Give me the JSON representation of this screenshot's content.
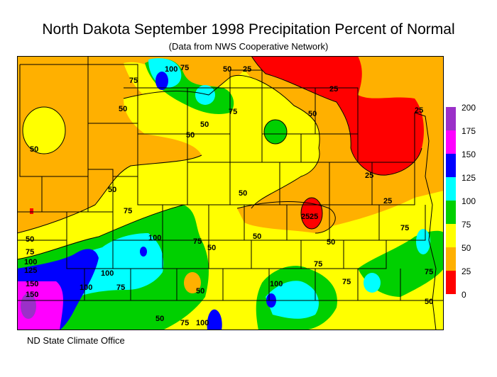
{
  "title": "North Dakota September 1998 Precipitation Percent of Normal",
  "subtitle": "(Data from NWS Cooperative Network)",
  "credit": "ND State Climate Office",
  "legend": {
    "labels": [
      "200",
      "175",
      "150",
      "125",
      "100",
      "75",
      "50",
      "25",
      "0"
    ],
    "colors": [
      "#9b30c8",
      "#ff00ff",
      "#0000ff",
      "#00ffff",
      "#00d000",
      "#ffff00",
      "#ffb000",
      "#ff0000"
    ]
  },
  "contour_labels": [
    "100",
    "75",
    "50",
    "25",
    "75",
    "50",
    "25",
    "50",
    "25",
    "50",
    "50",
    "50",
    "25",
    "75",
    "50",
    "25",
    "50",
    "25",
    "100",
    "75",
    "50",
    "50",
    "50",
    "75",
    "50",
    "75",
    "100",
    "125",
    "150",
    "100",
    "50",
    "25",
    "75",
    "100",
    "75",
    "75",
    "75",
    "50",
    "100",
    "75",
    "50",
    "100",
    "75",
    "150"
  ]
}
